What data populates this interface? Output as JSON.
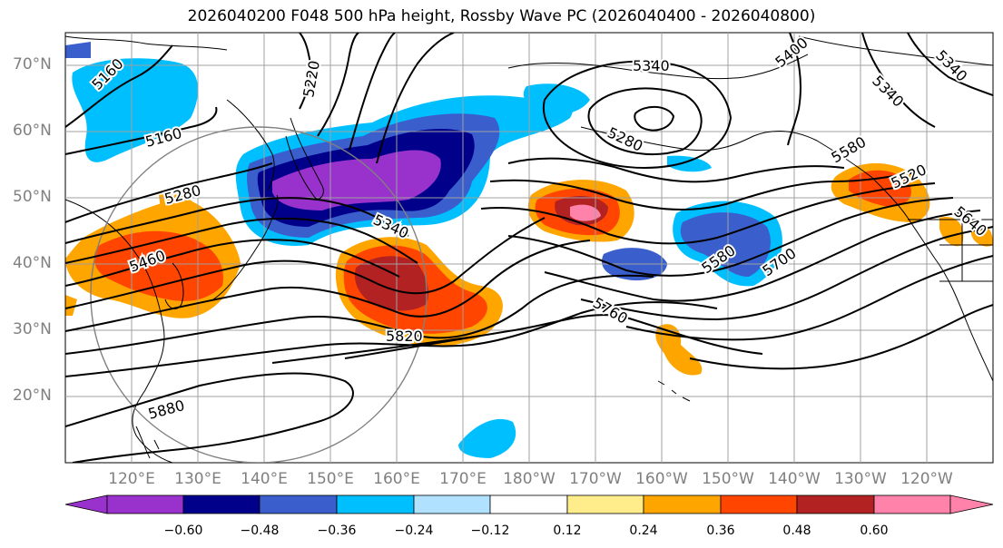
{
  "title": "2026040200 F048 500 hPa height, Rossby Wave PC (2026040400 - 2026040800)",
  "lat_labels": [
    "70°N",
    "60°N",
    "50°N",
    "40°N",
    "30°N",
    "20°N"
  ],
  "lon_labels": [
    "120°E",
    "130°E",
    "140°E",
    "150°E",
    "160°E",
    "170°E",
    "180°W",
    "170°W",
    "160°W",
    "150°W",
    "140°W",
    "130°W",
    "120°W"
  ],
  "contour_labels": [
    "5160",
    "5220",
    "5340",
    "5400",
    "5160",
    "5280",
    "5340",
    "5280",
    "5460",
    "5340",
    "5820",
    "5760",
    "5580",
    "5700",
    "5880",
    "5520",
    "5640",
    "5340",
    "5580"
  ],
  "colorbar": {
    "ticks": [
      "−0.60",
      "−0.48",
      "−0.36",
      "−0.24",
      "−0.12",
      "0.12",
      "0.24",
      "0.36",
      "0.48",
      "0.60"
    ],
    "colors": [
      "#9932cc",
      "#00008b",
      "#3a5fcd",
      "#00bfff",
      "#b0e2ff",
      "#ffffff",
      "#ffec8b",
      "#ffa500",
      "#ff4500",
      "#b22222",
      "#ff82ab"
    ]
  },
  "colors": {
    "contour": "#000000",
    "grid": "#a0a0a0",
    "circle": "#808080",
    "axis_label": "#808080"
  }
}
